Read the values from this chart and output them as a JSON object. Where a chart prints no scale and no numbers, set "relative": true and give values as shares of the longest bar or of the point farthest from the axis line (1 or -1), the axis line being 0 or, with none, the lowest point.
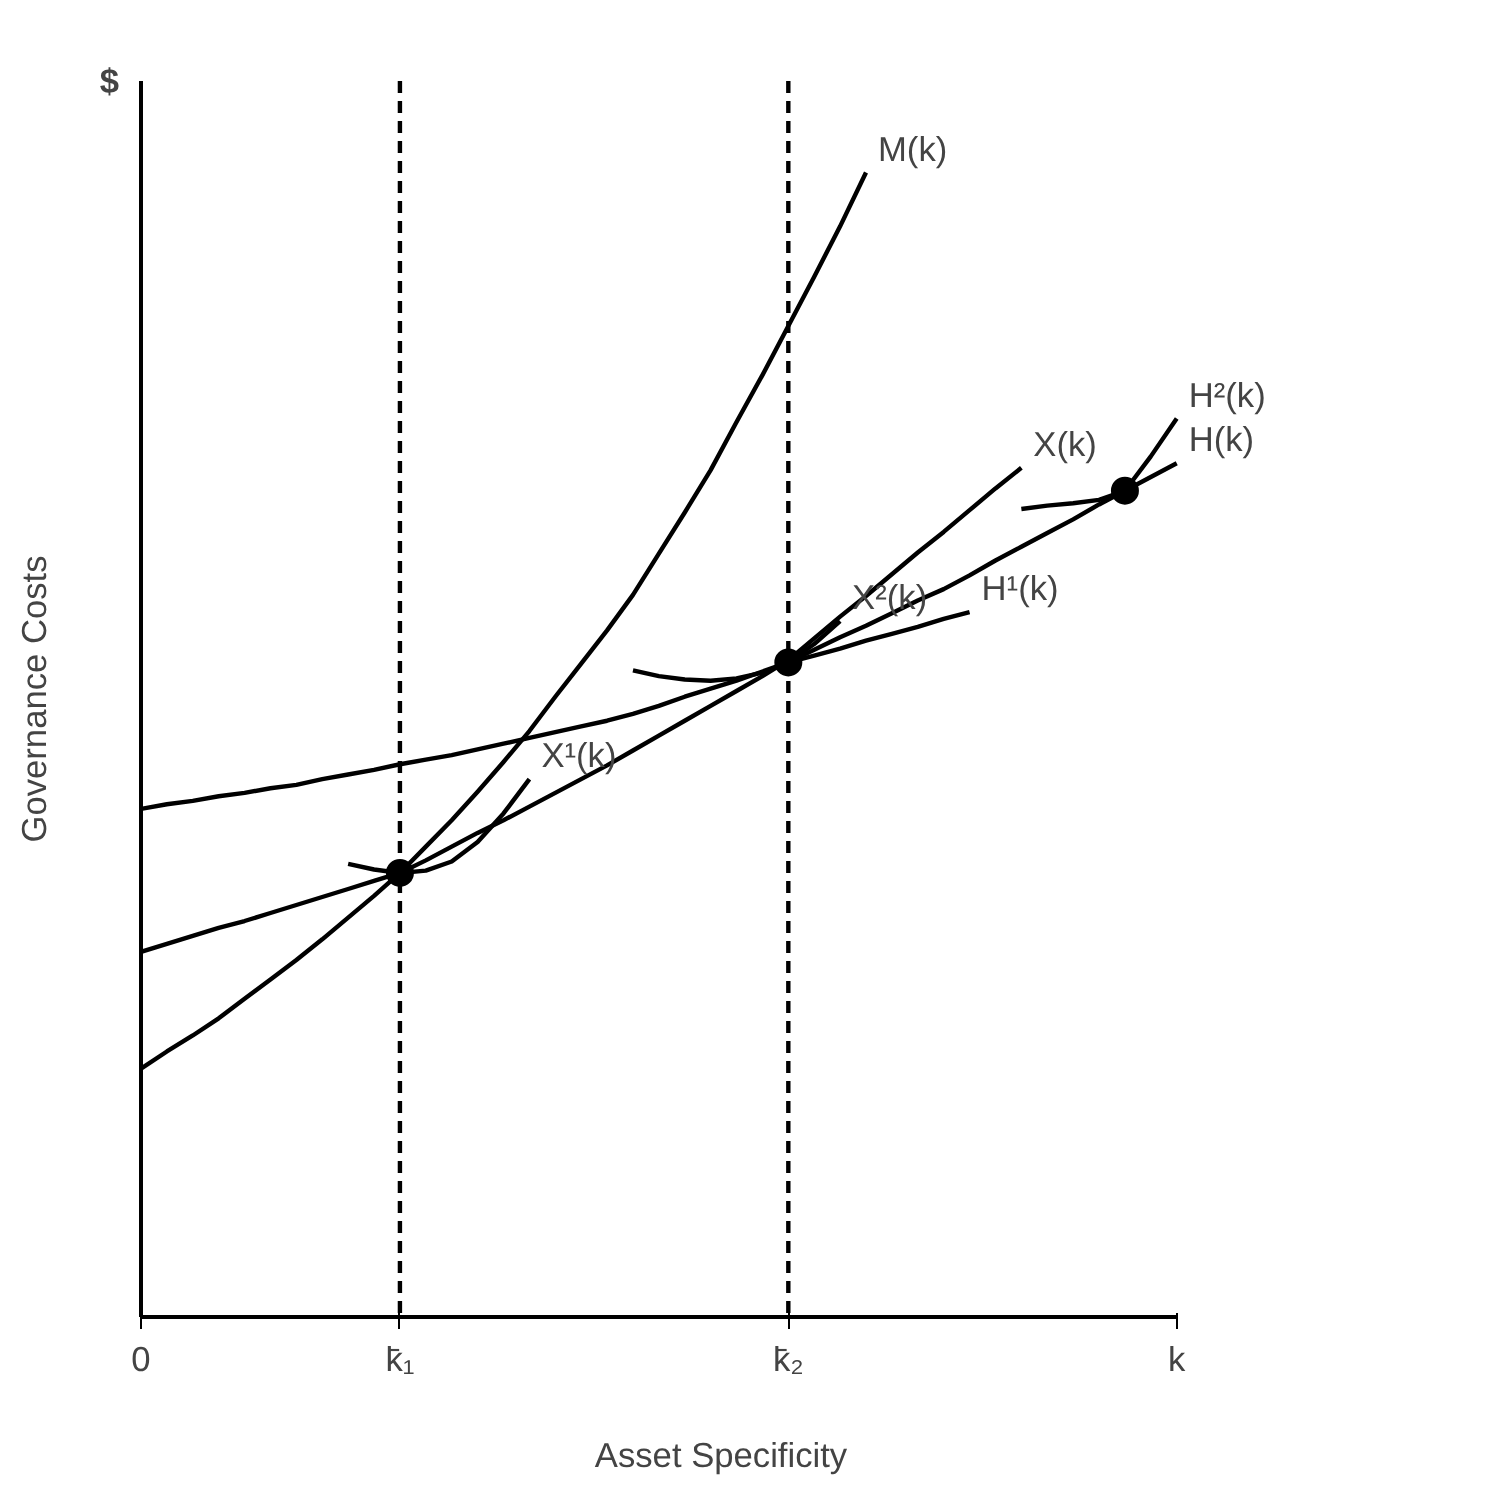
{
  "chart_data": {
    "type": "line",
    "relative": true,
    "xlabel": "Asset Specificity",
    "ylabel": "Governance Costs",
    "categories": [
      "0",
      null,
      null,
      null,
      null,
      null,
      null,
      null,
      null,
      null,
      "k̄₁",
      null,
      null,
      null,
      null,
      null,
      null,
      null,
      null,
      null,
      null,
      null,
      null,
      null,
      null,
      "k̄₂",
      null,
      null,
      null,
      null,
      null,
      null,
      null,
      null,
      null,
      null,
      null,
      null,
      null,
      null,
      "k"
    ],
    "tick_labels": "x",
    "grid": false,
    "line_style": "solid",
    "series": [
      {
        "name": "M(k)",
        "color": "#000000",
        "values": [
          0.217,
          0.232,
          0.246,
          0.261,
          0.278,
          0.295,
          0.312,
          0.33,
          0.349,
          0.368,
          0.388,
          0.411,
          0.434,
          0.459,
          0.485,
          0.512,
          0.542,
          0.571,
          0.6,
          0.631,
          0.667,
          0.703,
          0.74,
          0.782,
          0.823,
          0.866,
          0.909,
          0.953,
          1.0,
          null,
          null,
          null,
          null,
          null,
          null,
          null,
          null,
          null,
          null,
          null,
          null
        ]
      },
      {
        "name": "X(k)",
        "color": "#000000",
        "values": [
          0.319,
          0.326,
          0.333,
          0.34,
          0.346,
          0.353,
          0.36,
          0.367,
          0.374,
          0.381,
          0.388,
          0.399,
          0.411,
          0.423,
          0.434,
          0.446,
          0.458,
          0.47,
          0.482,
          0.495,
          0.508,
          0.521,
          0.534,
          0.547,
          0.56,
          0.574,
          0.593,
          0.612,
          0.63,
          0.649,
          0.668,
          0.686,
          0.705,
          0.724,
          0.742,
          null,
          null,
          null,
          null,
          null,
          null
        ]
      },
      {
        "name": "H(k)",
        "color": "#000000",
        "values": [
          0.444,
          0.448,
          0.451,
          0.455,
          0.458,
          0.462,
          0.465,
          0.47,
          0.474,
          0.478,
          0.483,
          0.487,
          0.491,
          0.496,
          0.501,
          0.506,
          0.511,
          0.516,
          0.521,
          0.527,
          0.534,
          0.542,
          0.549,
          0.556,
          0.564,
          0.572,
          0.583,
          0.594,
          0.604,
          0.615,
          0.626,
          0.636,
          0.648,
          0.661,
          0.673,
          0.685,
          0.697,
          0.71,
          0.722,
          0.734,
          0.746
        ]
      },
      {
        "name": "X¹(k)",
        "color": "#000000",
        "values": [
          null,
          null,
          null,
          null,
          null,
          null,
          null,
          null,
          0.396,
          0.391,
          0.388,
          0.39,
          0.398,
          0.415,
          0.44,
          0.47,
          null,
          null,
          null,
          null,
          null,
          null,
          null,
          null,
          null,
          null,
          null,
          null,
          null,
          null,
          null,
          null,
          null,
          null,
          null,
          null,
          null,
          null,
          null,
          null,
          null
        ]
      },
      {
        "name": "X²(k)",
        "color": "#000000",
        "values": [
          null,
          null,
          null,
          null,
          null,
          null,
          null,
          null,
          null,
          null,
          null,
          null,
          null,
          null,
          null,
          null,
          null,
          null,
          null,
          0.565,
          0.56,
          0.557,
          0.556,
          0.558,
          0.563,
          0.572,
          0.588,
          0.608,
          null,
          null,
          null,
          null,
          null,
          null,
          null,
          null,
          null,
          null,
          null,
          null,
          null
        ]
      },
      {
        "name": "H¹(k)",
        "color": "#000000",
        "values": [
          null,
          null,
          null,
          null,
          null,
          null,
          null,
          null,
          null,
          null,
          null,
          null,
          null,
          null,
          null,
          null,
          null,
          null,
          null,
          null,
          null,
          null,
          null,
          null,
          null,
          0.572,
          0.578,
          0.584,
          0.591,
          0.597,
          0.603,
          0.61,
          0.616,
          null,
          null,
          null,
          null,
          null,
          null,
          null,
          null
        ]
      },
      {
        "name": "H²(k)",
        "color": "#000000",
        "values": [
          null,
          null,
          null,
          null,
          null,
          null,
          null,
          null,
          null,
          null,
          null,
          null,
          null,
          null,
          null,
          null,
          null,
          null,
          null,
          null,
          null,
          null,
          null,
          null,
          null,
          null,
          null,
          null,
          null,
          null,
          null,
          null,
          null,
          null,
          0.706,
          0.709,
          0.711,
          0.714,
          0.722,
          0.752,
          0.785
        ]
      },
      {
        "type": "scatter",
        "marker": "circle",
        "color": "#000000",
        "values": [
          null,
          null,
          null,
          null,
          null,
          null,
          null,
          null,
          null,
          null,
          0.388,
          null,
          null,
          null,
          null,
          null,
          null,
          null,
          null,
          null,
          null,
          null,
          null,
          null,
          null,
          0.572,
          null,
          null,
          null,
          null,
          null,
          null,
          null,
          null,
          null,
          null,
          null,
          null,
          0.722,
          null,
          null
        ]
      }
    ],
    "ref_lines": [
      {
        "axis": "x",
        "value": "k̄₁",
        "line_style": "dashed",
        "color": "#000000"
      },
      {
        "axis": "x",
        "value": "k̄₂",
        "line_style": "dashed",
        "color": "#000000"
      }
    ],
    "annotations": [
      "$"
    ]
  }
}
